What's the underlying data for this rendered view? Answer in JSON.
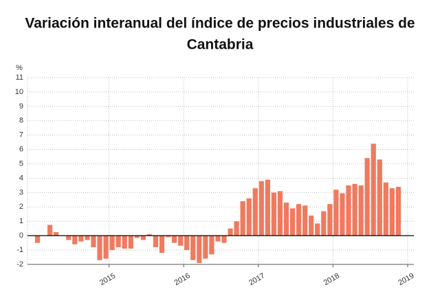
{
  "chart_data": {
    "type": "bar",
    "title": [
      "Variación interanual del índice de precios industriales de",
      "Cantabria"
    ],
    "y_label": "%",
    "categories": [
      null,
      null,
      null,
      null,
      null,
      null,
      null,
      null,
      null,
      null,
      null,
      null,
      "2015",
      null,
      null,
      null,
      null,
      null,
      null,
      null,
      null,
      null,
      null,
      null,
      "2016",
      null,
      null,
      null,
      null,
      null,
      null,
      null,
      null,
      null,
      null,
      null,
      "2017",
      null,
      null,
      null,
      null,
      null,
      null,
      null,
      null,
      null,
      null,
      null,
      "2018",
      null,
      null,
      null,
      null,
      null,
      null,
      null,
      null,
      null,
      null,
      null,
      "2019"
    ],
    "values": [
      -0.5,
      0,
      0.75,
      0.25,
      0,
      -0.3,
      -0.6,
      -0.4,
      -0.3,
      -0.8,
      -1.7,
      -1.6,
      -1.0,
      -0.8,
      -0.9,
      -0.9,
      -0.15,
      -0.3,
      0.1,
      -0.8,
      -1.2,
      -0.1,
      -0.5,
      -0.7,
      -1.0,
      -1.7,
      -1.9,
      -1.6,
      -1.3,
      -0.4,
      -0.5,
      0.5,
      1.0,
      2.4,
      2.6,
      3.3,
      3.8,
      3.9,
      3.0,
      3.1,
      2.3,
      1.9,
      2.2,
      2.1,
      1.4,
      0.85,
      1.7,
      2.2,
      3.2,
      2.95,
      3.5,
      3.6,
      3.5,
      5.4,
      6.4,
      5.3,
      3.7,
      3.3,
      3.4,
      null,
      null
    ],
    "color": "#ee7b5f",
    "ylim": [
      -2,
      11
    ],
    "yticks": [
      -2,
      -1,
      0,
      1,
      2,
      3,
      4,
      5,
      6,
      7,
      8,
      9,
      10,
      11
    ],
    "grid": true
  }
}
